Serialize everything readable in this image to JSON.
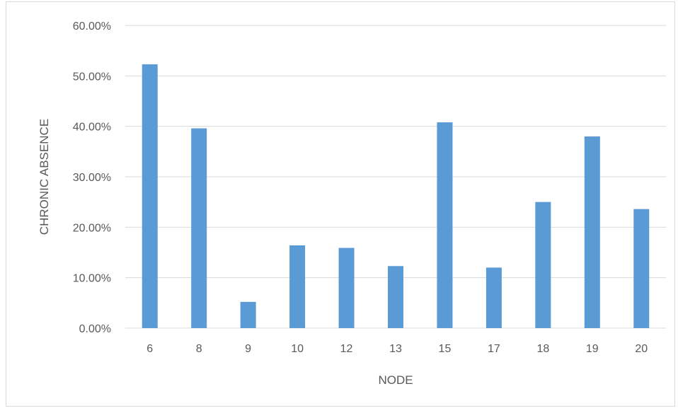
{
  "chart_data": {
    "type": "bar",
    "title": "",
    "xlabel": "NODE",
    "ylabel": "CHRONIC ABSENCE",
    "categories": [
      "6",
      "8",
      "9",
      "10",
      "12",
      "13",
      "15",
      "17",
      "18",
      "19",
      "20"
    ],
    "values": [
      0.523,
      0.396,
      0.052,
      0.164,
      0.159,
      0.123,
      0.408,
      0.12,
      0.25,
      0.38,
      0.236
    ],
    "ylim": [
      0,
      0.6
    ],
    "yticks": [
      0,
      0.1,
      0.2,
      0.3,
      0.4,
      0.5,
      0.6
    ],
    "ytick_labels": [
      "0.00%",
      "10.00%",
      "20.00%",
      "30.00%",
      "40.00%",
      "50.00%",
      "60.00%"
    ],
    "grid": true,
    "legend": "none",
    "bar_color": "#5b9bd5",
    "grid_color": "#d9d9d9"
  }
}
